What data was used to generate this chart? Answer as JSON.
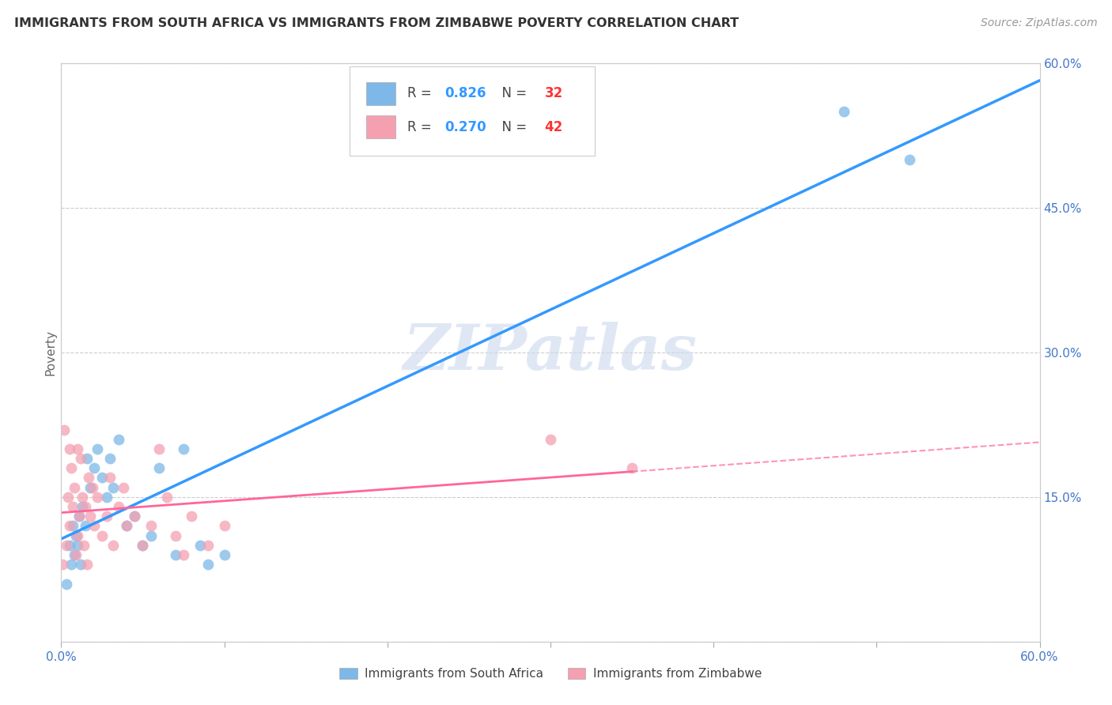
{
  "title": "IMMIGRANTS FROM SOUTH AFRICA VS IMMIGRANTS FROM ZIMBABWE POVERTY CORRELATION CHART",
  "source": "Source: ZipAtlas.com",
  "ylabel": "Poverty",
  "xlim": [
    0.0,
    0.6
  ],
  "ylim": [
    0.0,
    0.6
  ],
  "xticks": [
    0.0,
    0.1,
    0.2,
    0.3,
    0.4,
    0.5,
    0.6
  ],
  "yticks": [
    0.0,
    0.15,
    0.3,
    0.45,
    0.6
  ],
  "right_ytick_labels": [
    "0.0%",
    "15.0%",
    "30.0%",
    "45.0%",
    "60.0%"
  ],
  "right_yticks": [
    0.0,
    0.15,
    0.3,
    0.45,
    0.6
  ],
  "grid_color": "#cccccc",
  "background_color": "#ffffff",
  "south_africa_color": "#7db8e8",
  "zimbabwe_color": "#f4a0b0",
  "south_africa_R": "0.826",
  "south_africa_N": "32",
  "zimbabwe_R": "0.270",
  "zimbabwe_N": "42",
  "south_africa_x": [
    0.003,
    0.005,
    0.006,
    0.007,
    0.008,
    0.009,
    0.01,
    0.011,
    0.012,
    0.013,
    0.015,
    0.016,
    0.018,
    0.02,
    0.022,
    0.025,
    0.028,
    0.03,
    0.032,
    0.035,
    0.04,
    0.045,
    0.05,
    0.055,
    0.06,
    0.07,
    0.075,
    0.085,
    0.09,
    0.1,
    0.48,
    0.52
  ],
  "south_africa_y": [
    0.06,
    0.1,
    0.08,
    0.12,
    0.09,
    0.11,
    0.1,
    0.13,
    0.08,
    0.14,
    0.12,
    0.19,
    0.16,
    0.18,
    0.2,
    0.17,
    0.15,
    0.19,
    0.16,
    0.21,
    0.12,
    0.13,
    0.1,
    0.11,
    0.18,
    0.09,
    0.2,
    0.1,
    0.08,
    0.09,
    0.55,
    0.5
  ],
  "zimbabwe_x": [
    0.001,
    0.002,
    0.003,
    0.004,
    0.005,
    0.005,
    0.006,
    0.007,
    0.008,
    0.009,
    0.01,
    0.01,
    0.011,
    0.012,
    0.013,
    0.014,
    0.015,
    0.016,
    0.017,
    0.018,
    0.019,
    0.02,
    0.022,
    0.025,
    0.028,
    0.03,
    0.032,
    0.035,
    0.038,
    0.04,
    0.045,
    0.05,
    0.055,
    0.06,
    0.065,
    0.07,
    0.075,
    0.08,
    0.09,
    0.1,
    0.3,
    0.35
  ],
  "zimbabwe_y": [
    0.08,
    0.22,
    0.1,
    0.15,
    0.12,
    0.2,
    0.18,
    0.14,
    0.16,
    0.09,
    0.11,
    0.2,
    0.13,
    0.19,
    0.15,
    0.1,
    0.14,
    0.08,
    0.17,
    0.13,
    0.16,
    0.12,
    0.15,
    0.11,
    0.13,
    0.17,
    0.1,
    0.14,
    0.16,
    0.12,
    0.13,
    0.1,
    0.12,
    0.2,
    0.15,
    0.11,
    0.09,
    0.13,
    0.1,
    0.12,
    0.21,
    0.18
  ],
  "legend_border_color": "#cccccc",
  "watermark_color": "#ccd8ee",
  "watermark_alpha": 0.6,
  "sa_line_color": "#3399ff",
  "zim_line_color": "#ff6699",
  "title_color": "#333333",
  "source_color": "#999999",
  "axis_label_color": "#4477cc",
  "ylabel_color": "#666666"
}
